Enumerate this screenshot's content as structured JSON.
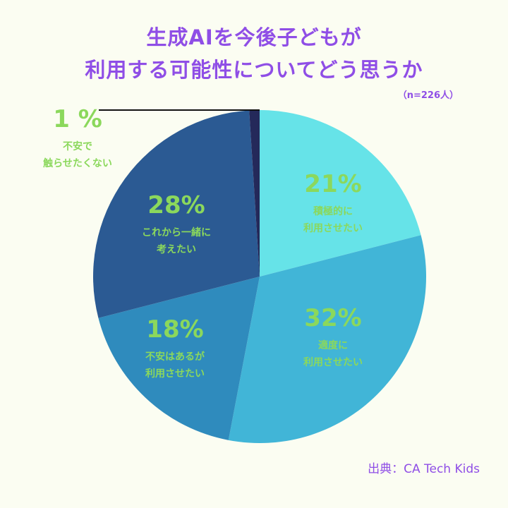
{
  "title": {
    "line1": "生成AIを今後子どもが",
    "line2": "利用する可能性についてどう思うか"
  },
  "sample_note": "（n=226人）",
  "source": "出典：CA Tech Kids",
  "colors": {
    "background": "#fbfdf2",
    "title": "#8f4ee6",
    "label": "#8bd85c"
  },
  "chart_data": {
    "type": "pie",
    "title": "生成AIを今後子どもが利用する可能性についてどう思うか",
    "start": "12 o'clock, clockwise",
    "slices": [
      {
        "pct_label": "21%",
        "value": 21,
        "label_lines": [
          "積極的に",
          "利用させたい"
        ],
        "color": "#66e3e8"
      },
      {
        "pct_label": "32%",
        "value": 32,
        "label_lines": [
          "適度に",
          "利用させたい"
        ],
        "color": "#41b5d7"
      },
      {
        "pct_label": "18%",
        "value": 18,
        "label_lines": [
          "不安はあるが",
          "利用させたい"
        ],
        "color": "#2f8bbd"
      },
      {
        "pct_label": "28%",
        "value": 28,
        "label_lines": [
          "これから一緒に",
          "考えたい"
        ],
        "color": "#2b5a93"
      },
      {
        "pct_label": "1 %",
        "value": 1,
        "label_lines": [
          "不安で",
          "触らせたくない"
        ],
        "color": "#24295a"
      }
    ]
  }
}
